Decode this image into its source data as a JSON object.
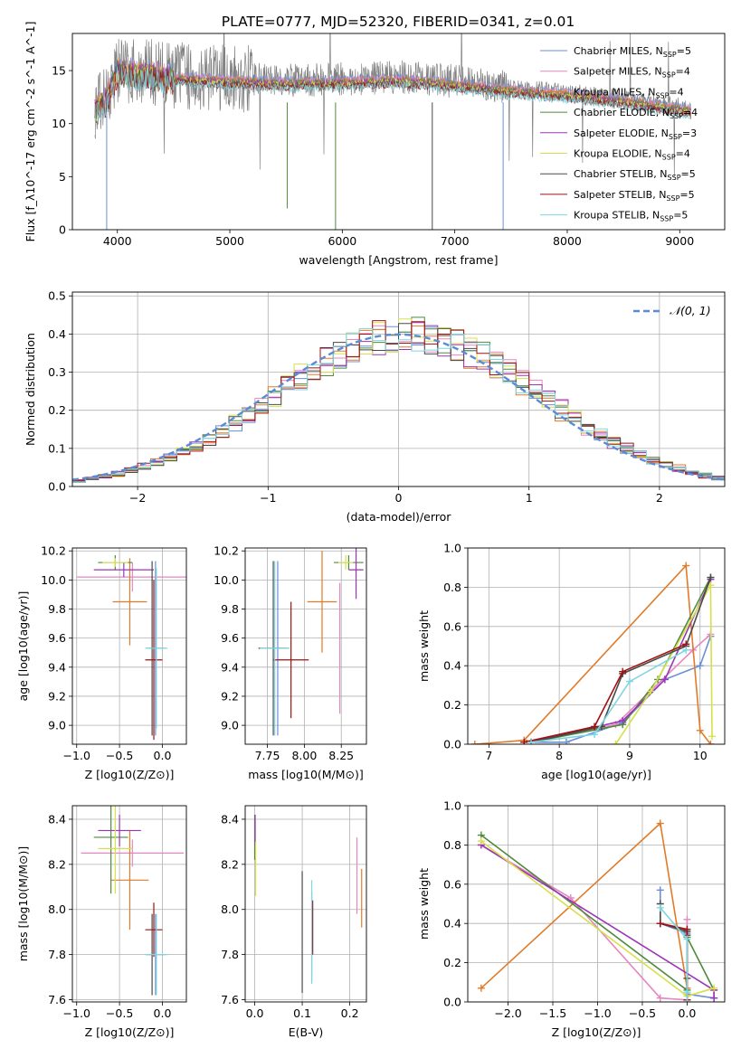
{
  "figure": {
    "title": "PLATE=0777, MJD=52320, FIBERID=0341, z=0.01",
    "models": [
      {
        "name": "Chabrier MILES",
        "nssp": 5,
        "color": "#6a8fd8"
      },
      {
        "name": "Salpeter MILES",
        "nssp": 4,
        "color": "#e587c0"
      },
      {
        "name": "Kroupa MILES",
        "nssp": 4,
        "color": "#e07b2a"
      },
      {
        "name": "Chabrier ELODIE",
        "nssp": 4,
        "color": "#4e8a3c"
      },
      {
        "name": "Salpeter ELODIE",
        "nssp": 3,
        "color": "#9b35b5"
      },
      {
        "name": "Kroupa ELODIE",
        "nssp": 4,
        "color": "#d7e04a"
      },
      {
        "name": "Chabrier STELIB",
        "nssp": 5,
        "color": "#4a4a4a"
      },
      {
        "name": "Salpeter STELIB",
        "nssp": 5,
        "color": "#a21010"
      },
      {
        "name": "Kroupa STELIB",
        "nssp": 5,
        "color": "#7ed6e0"
      }
    ]
  },
  "chart_data": [
    {
      "id": "spectrum",
      "type": "line",
      "xlabel": "wavelength [Angstrom, rest frame]",
      "ylabel": "Flux [f_λ10^-17 erg cm^-2 s^-1 A^-1]",
      "xlim": [
        3600,
        9400
      ],
      "ylim": [
        0,
        18.5
      ],
      "xticks": [
        4000,
        5000,
        6000,
        7000,
        8000,
        9000
      ],
      "yticks": [
        0,
        5,
        10,
        15
      ],
      "data_color": "#808080",
      "data_range": [
        3800,
        9100
      ],
      "model_continuum": {
        "x": [
          3800,
          3900,
          4000,
          4500,
          5000,
          5500,
          6000,
          6500,
          7000,
          7500,
          8000,
          8500,
          9100
        ],
        "y": [
          11.5,
          12.5,
          15.2,
          14.6,
          14.3,
          14.1,
          14.2,
          14.4,
          14.0,
          13.4,
          13.0,
          12.4,
          11.5
        ]
      },
      "grid": false,
      "legend": "upper-right"
    },
    {
      "id": "residuals",
      "type": "histogram",
      "xlabel": "(data-model)/error",
      "ylabel": "Normed distribution",
      "xlim": [
        -2.5,
        2.5
      ],
      "ylim": [
        0,
        0.51
      ],
      "xticks": [
        -2,
        -1,
        0,
        1,
        2
      ],
      "yticks": [
        0,
        0.1,
        0.2,
        0.3,
        0.4,
        0.5
      ],
      "gaussian": {
        "label": "𝒩(0, 1)",
        "mean": 0,
        "sigma": 1,
        "color": "#5b8ad6"
      },
      "bin_width": 0.1,
      "grid": true,
      "legend": "upper-right"
    },
    {
      "id": "age-vs-Z",
      "type": "errorbar",
      "xlabel": "Z [log10(Z/Z⊙)]",
      "ylabel": "age [log10(age/yr)]",
      "xlim": [
        -1.05,
        0.28
      ],
      "ylim": [
        8.87,
        10.22
      ],
      "xticks": [
        -1.0,
        -0.5,
        0.0
      ],
      "yticks": [
        9.0,
        9.2,
        9.4,
        9.6,
        9.8,
        10.0,
        10.2
      ],
      "points": [
        {
          "x": -0.08,
          "xerr": 0.11,
          "y": 9.53,
          "yerr": 0.6,
          "model": 0
        },
        {
          "x": -0.35,
          "xerr": 0.65,
          "y": 10.02,
          "yerr": 0.1,
          "model": 1
        },
        {
          "x": -0.38,
          "xerr": 0.2,
          "y": 9.85,
          "yerr": 0.3,
          "model": 2
        },
        {
          "x": -0.55,
          "xerr": 0.2,
          "y": 10.12,
          "yerr": 0.05,
          "model": 3
        },
        {
          "x": -0.45,
          "xerr": 0.35,
          "y": 10.07,
          "yerr": 0.05,
          "model": 4
        },
        {
          "x": -0.55,
          "xerr": 0.15,
          "y": 10.12,
          "yerr": 0.03,
          "model": 5
        },
        {
          "x": -0.12,
          "xerr": 0.02,
          "y": 9.53,
          "yerr": 0.6,
          "model": 6
        },
        {
          "x": -0.1,
          "xerr": 0.1,
          "y": 9.45,
          "yerr": 0.55,
          "model": 7
        },
        {
          "x": -0.07,
          "xerr": 0.13,
          "y": 9.53,
          "yerr": 0.55,
          "model": 8
        }
      ],
      "grid": true
    },
    {
      "id": "age-vs-mass",
      "type": "errorbar",
      "xlabel": "mass [log10(M/M⊙)]",
      "ylabel": "",
      "xlim": [
        7.6,
        8.42
      ],
      "ylim": [
        8.87,
        10.22
      ],
      "xticks": [
        7.75,
        8.0,
        8.25
      ],
      "yticks": [
        9.0,
        9.2,
        9.4,
        9.6,
        9.8,
        10.0,
        10.2
      ],
      "points": [
        {
          "x": 7.82,
          "xerr": 0.02,
          "y": 9.53,
          "yerr": 0.6,
          "model": 0
        },
        {
          "x": 8.24,
          "xerr": 0.0,
          "y": 9.53,
          "yerr": 0.45,
          "model": 1
        },
        {
          "x": 8.12,
          "xerr": 0.1,
          "y": 9.85,
          "yerr": 0.35,
          "model": 2
        },
        {
          "x": 8.3,
          "xerr": 0.1,
          "y": 10.12,
          "yerr": 0.05,
          "model": 3
        },
        {
          "x": 8.35,
          "xerr": 0.05,
          "y": 10.07,
          "yerr": 0.2,
          "model": 4
        },
        {
          "x": 8.28,
          "xerr": 0.05,
          "y": 10.12,
          "yerr": 0.05,
          "model": 5
        },
        {
          "x": 7.79,
          "xerr": 0.1,
          "y": 9.53,
          "yerr": 0.6,
          "model": 6
        },
        {
          "x": 7.91,
          "xerr": 0.12,
          "y": 9.45,
          "yerr": 0.4,
          "model": 7
        },
        {
          "x": 7.8,
          "xerr": 0.1,
          "y": 9.53,
          "yerr": 0.6,
          "model": 8
        }
      ],
      "grid": true
    },
    {
      "id": "weight-vs-age",
      "type": "line",
      "xlabel": "age [log10(age/yr)]",
      "ylabel": "mass weight",
      "xlim": [
        6.7,
        10.35
      ],
      "ylim": [
        0,
        1.0
      ],
      "xticks": [
        7,
        8,
        9,
        10
      ],
      "yticks": [
        0.0,
        0.2,
        0.4,
        0.6,
        0.8,
        1.0
      ],
      "series": [
        {
          "model": 0,
          "x": [
            7.5,
            8.1,
            8.9,
            9.5,
            10.0,
            10.15
          ],
          "y": [
            0.01,
            0.01,
            0.11,
            0.33,
            0.4,
            0.55
          ]
        },
        {
          "model": 1,
          "x": [
            7.5,
            8.8,
            9.9,
            10.15
          ],
          "y": [
            0.01,
            0.1,
            0.48,
            0.56
          ]
        },
        {
          "model": 2,
          "x": [
            6.8,
            7.5,
            9.8,
            10.0,
            10.15
          ],
          "y": [
            0.0,
            0.02,
            0.91,
            0.07,
            0.0
          ]
        },
        {
          "model": 3,
          "x": [
            7.6,
            8.9,
            9.4,
            10.15
          ],
          "y": [
            0.01,
            0.1,
            0.33,
            0.85
          ]
        },
        {
          "model": 4,
          "x": [
            7.6,
            8.9,
            9.5,
            10.15
          ],
          "y": [
            0.01,
            0.12,
            0.33,
            0.84
          ]
        },
        {
          "model": 5,
          "x": [
            8.8,
            9.3,
            10.15,
            10.17
          ],
          "y": [
            0.0,
            0.27,
            0.81,
            0.04
          ]
        },
        {
          "model": 6,
          "x": [
            7.6,
            8.6,
            8.9,
            9.8,
            10.15
          ],
          "y": [
            0.01,
            0.09,
            0.36,
            0.5,
            0.85
          ]
        },
        {
          "model": 7,
          "x": [
            7.5,
            8.5,
            8.9,
            9.8
          ],
          "y": [
            0.01,
            0.09,
            0.37,
            0.51
          ]
        },
        {
          "model": 8,
          "x": [
            7.6,
            8.5,
            9.0,
            9.8
          ],
          "y": [
            0.01,
            0.05,
            0.32,
            0.48
          ]
        }
      ],
      "grid": true
    },
    {
      "id": "mass-vs-Z",
      "type": "errorbar",
      "xlabel": "Z [log10(Z/Z⊙)]",
      "ylabel": "mass [log10(M/M⊙)]",
      "xlim": [
        -1.05,
        0.28
      ],
      "ylim": [
        7.59,
        8.46
      ],
      "xticks": [
        -1.0,
        -0.5,
        0.0
      ],
      "yticks": [
        7.6,
        7.8,
        8.0,
        8.2,
        8.4
      ],
      "points": [
        {
          "x": -0.08,
          "xerr": 0.11,
          "y": 7.8,
          "yerr": 0.18,
          "model": 0
        },
        {
          "x": -0.35,
          "xerr": 0.6,
          "y": 8.25,
          "yerr": 0.06,
          "model": 1
        },
        {
          "x": -0.38,
          "xerr": 0.22,
          "y": 8.13,
          "yerr": 0.22,
          "model": 2
        },
        {
          "x": -0.6,
          "xerr": 0.2,
          "y": 8.32,
          "yerr": 0.25,
          "model": 3
        },
        {
          "x": -0.5,
          "xerr": 0.25,
          "y": 8.35,
          "yerr": 0.07,
          "model": 4
        },
        {
          "x": -0.55,
          "xerr": 0.2,
          "y": 8.27,
          "yerr": 0.2,
          "model": 5
        },
        {
          "x": -0.12,
          "xerr": 0.02,
          "y": 7.8,
          "yerr": 0.18,
          "model": 6
        },
        {
          "x": -0.1,
          "xerr": 0.1,
          "y": 7.91,
          "yerr": 0.12,
          "model": 7
        },
        {
          "x": -0.07,
          "xerr": 0.13,
          "y": 7.8,
          "yerr": 0.18,
          "model": 8
        }
      ],
      "grid": true
    },
    {
      "id": "mass-vs-EBV",
      "type": "errorbar",
      "xlabel": "E(B-V)",
      "ylabel": "",
      "xlim": [
        -0.02,
        0.235
      ],
      "ylim": [
        7.59,
        8.46
      ],
      "xticks": [
        0.0,
        0.1,
        0.2
      ],
      "yticks": [
        7.6,
        7.8,
        8.0,
        8.2,
        8.4
      ],
      "points": [
        {
          "x": 0.12,
          "xerr": 0.0,
          "y": 7.88,
          "yerr": 0.2,
          "model": 0
        },
        {
          "x": 0.215,
          "xerr": 0.0,
          "y": 8.15,
          "yerr": 0.17,
          "model": 1
        },
        {
          "x": 0.225,
          "xerr": 0.0,
          "y": 8.05,
          "yerr": 0.13,
          "model": 2
        },
        {
          "x": 0.0,
          "xerr": 0.0,
          "y": 8.32,
          "yerr": 0.1,
          "model": 3
        },
        {
          "x": 0.001,
          "xerr": 0.0,
          "y": 8.35,
          "yerr": 0.07,
          "model": 4
        },
        {
          "x": 0.002,
          "xerr": 0.0,
          "y": 8.18,
          "yerr": 0.12,
          "model": 5
        },
        {
          "x": 0.1,
          "xerr": 0.0,
          "y": 7.9,
          "yerr": 0.27,
          "model": 6
        },
        {
          "x": 0.122,
          "xerr": 0.0,
          "y": 7.92,
          "yerr": 0.12,
          "model": 7
        },
        {
          "x": 0.12,
          "xerr": 0.0,
          "y": 7.9,
          "yerr": 0.23,
          "model": 8
        }
      ],
      "grid": true
    },
    {
      "id": "weight-vs-Z",
      "type": "line",
      "xlabel": "Z [log10(Z/Z⊙)]",
      "ylabel": "mass weight",
      "xlim": [
        -2.45,
        0.42
      ],
      "ylim": [
        0,
        1.0
      ],
      "xticks": [
        -2.0,
        -1.5,
        -1.0,
        -0.5,
        0.0
      ],
      "yticks": [
        0.0,
        0.2,
        0.4,
        0.6,
        0.8,
        1.0
      ],
      "series": [
        {
          "model": 0,
          "x": [
            -0.3,
            -0.3,
            0.0,
            0.0,
            0.3
          ],
          "y": [
            0.57,
            0.4,
            0.35,
            0.04,
            0.02
          ]
        },
        {
          "model": 1,
          "x": [
            -2.3,
            -1.3,
            -0.3,
            0.0,
            0.0
          ],
          "y": [
            0.8,
            0.53,
            0.02,
            0.01,
            0.42
          ]
        },
        {
          "model": 2,
          "x": [
            -2.3,
            -0.3,
            0.0,
            0.0
          ],
          "y": [
            0.07,
            0.91,
            0.07,
            0.01
          ]
        },
        {
          "model": 3,
          "x": [
            -2.3,
            0.0,
            0.0,
            0.3
          ],
          "y": [
            0.85,
            0.06,
            0.33,
            0.06
          ]
        },
        {
          "model": 4,
          "x": [
            -2.3,
            0.3,
            0.3
          ],
          "y": [
            0.8,
            0.06,
            0.02
          ]
        },
        {
          "model": 5,
          "x": [
            -2.3,
            0.0,
            0.3
          ],
          "y": [
            0.82,
            0.03,
            0.07
          ]
        },
        {
          "model": 6,
          "x": [
            -0.3,
            -0.3,
            0.0,
            0.0,
            0.0
          ],
          "y": [
            0.5,
            0.4,
            0.36,
            0.12,
            0.34
          ]
        },
        {
          "model": 7,
          "x": [
            -0.3,
            0.0,
            0.0
          ],
          "y": [
            0.4,
            0.37,
            0.01
          ]
        },
        {
          "model": 8,
          "x": [
            -0.3,
            0.0,
            0.0,
            0.0
          ],
          "y": [
            0.48,
            0.32,
            0.0,
            0.05
          ]
        }
      ],
      "grid": true
    }
  ]
}
